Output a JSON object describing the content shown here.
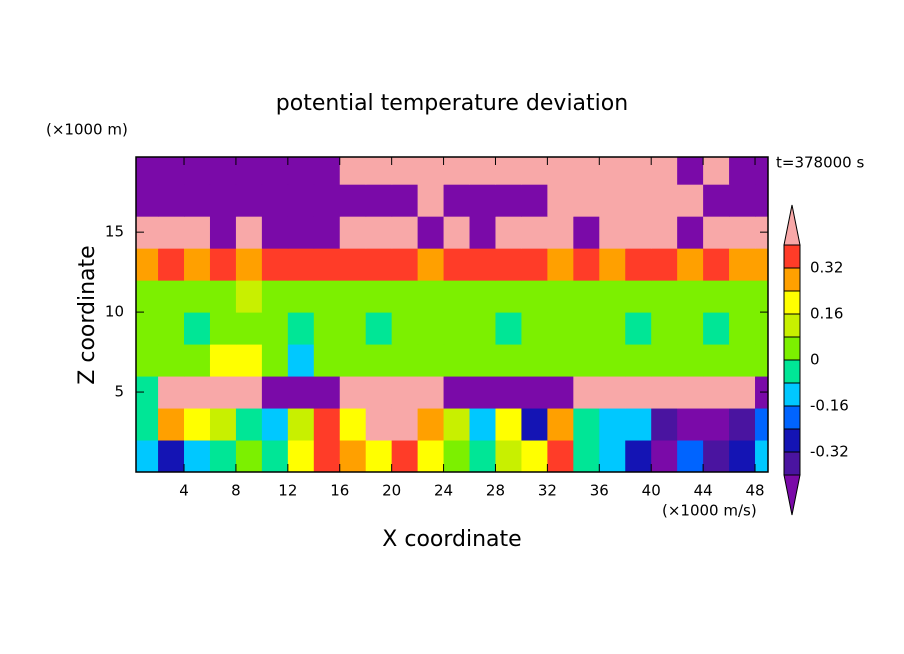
{
  "chart_data": {
    "type": "contour",
    "title": "potential temperature deviation",
    "subtitle": "t=378000 s",
    "x_label": "X coordinate",
    "y_label": "Z coordinate",
    "x_unit": "(×1000 m/s)",
    "y_unit": "(×1000 m)",
    "xlim": [
      0.3,
      49
    ],
    "ylim": [
      0,
      19.7
    ],
    "xticks": [
      4,
      8,
      12,
      16,
      20,
      24,
      28,
      32,
      36,
      40,
      44,
      48
    ],
    "yticks": [
      5,
      10,
      15
    ],
    "x": [
      1,
      3,
      5,
      7,
      9,
      11,
      13,
      15,
      17,
      19,
      21,
      23,
      25,
      27,
      29,
      31,
      33,
      35,
      37,
      39,
      41,
      43,
      45,
      47,
      49
    ],
    "y": [
      1,
      3,
      5,
      7,
      9,
      11,
      13,
      15,
      17,
      19
    ],
    "z": [
      [
        -0.12,
        -0.28,
        -0.12,
        -0.04,
        0.04,
        -0.04,
        0.2,
        0.36,
        0.28,
        0.2,
        0.36,
        0.2,
        0.04,
        -0.04,
        0.12,
        0.2,
        0.36,
        -0.04,
        -0.12,
        -0.28,
        -0.44,
        -0.2,
        -0.36,
        -0.28,
        -0.12
      ],
      [
        -0.04,
        0.28,
        0.2,
        0.12,
        -0.04,
        -0.12,
        0.12,
        0.36,
        0.2,
        0.5,
        0.5,
        0.28,
        0.12,
        -0.12,
        0.2,
        -0.28,
        0.28,
        -0.04,
        -0.12,
        -0.12,
        -0.36,
        -0.44,
        -0.5,
        -0.36,
        -0.2
      ],
      [
        -0.04,
        0.5,
        0.5,
        0.5,
        0.5,
        -0.5,
        -0.5,
        -0.5,
        0.5,
        0.5,
        0.5,
        0.5,
        -0.5,
        -0.5,
        -0.5,
        -0.5,
        -0.5,
        0.5,
        0.5,
        0.5,
        0.5,
        0.5,
        0.5,
        0.5,
        -0.5
      ],
      [
        0.04,
        0.04,
        0.04,
        0.2,
        0.2,
        0.04,
        -0.12,
        0.04,
        0.04,
        0.04,
        0.04,
        0.04,
        0.04,
        0.04,
        0.04,
        0.04,
        0.04,
        0.04,
        0.04,
        0.04,
        0.04,
        0.04,
        0.04,
        0.04,
        0.04
      ],
      [
        0.04,
        0.04,
        -0.04,
        0.04,
        0.04,
        0.04,
        -0.04,
        0.04,
        0.04,
        -0.04,
        0.04,
        0.04,
        0.04,
        0.04,
        -0.04,
        0.04,
        0.04,
        0.04,
        0.04,
        -0.04,
        0.04,
        0.04,
        -0.04,
        0.04,
        0.04
      ],
      [
        0.04,
        0.04,
        0.04,
        0.04,
        0.12,
        0.04,
        0.04,
        0.04,
        0.04,
        0.04,
        0.04,
        0.04,
        0.04,
        0.04,
        0.04,
        0.04,
        0.04,
        0.04,
        0.04,
        0.04,
        0.04,
        0.04,
        0.04,
        0.04,
        0.04
      ],
      [
        0.28,
        0.36,
        0.28,
        0.36,
        0.28,
        0.36,
        0.36,
        0.36,
        0.36,
        0.36,
        0.36,
        0.28,
        0.36,
        0.36,
        0.36,
        0.36,
        0.28,
        0.36,
        0.28,
        0.36,
        0.36,
        0.28,
        0.36,
        0.28,
        0.28
      ],
      [
        0.5,
        0.5,
        0.5,
        -0.5,
        0.5,
        -0.5,
        -0.5,
        -0.5,
        0.5,
        0.5,
        0.5,
        -0.5,
        0.5,
        -0.5,
        0.5,
        0.5,
        0.5,
        -0.5,
        0.5,
        0.5,
        0.5,
        -0.5,
        0.5,
        0.5,
        0.5
      ],
      [
        -0.5,
        -0.5,
        -0.5,
        -0.5,
        -0.5,
        -0.5,
        -0.5,
        -0.5,
        -0.5,
        -0.5,
        -0.5,
        0.5,
        -0.5,
        -0.5,
        -0.5,
        -0.5,
        0.5,
        0.5,
        0.5,
        0.5,
        0.5,
        0.5,
        -0.5,
        -0.5,
        -0.5
      ],
      [
        -0.5,
        -0.5,
        -0.5,
        -0.5,
        -0.5,
        -0.5,
        -0.5,
        -0.5,
        0.5,
        0.5,
        0.5,
        0.5,
        0.5,
        0.5,
        0.5,
        0.5,
        0.5,
        0.5,
        0.5,
        0.5,
        0.5,
        -0.5,
        0.5,
        -0.5,
        -0.5
      ]
    ],
    "levels": [
      -0.4,
      -0.32,
      -0.24,
      -0.16,
      -0.08,
      0,
      0.08,
      0.16,
      0.24,
      0.32,
      0.4
    ],
    "colors": [
      "#7a0aa8",
      "#4a14a0",
      "#1414b4",
      "#0064ff",
      "#00c8ff",
      "#00e696",
      "#7cf000",
      "#c8f000",
      "#ffff00",
      "#ffa000",
      "#ff3c28",
      "#f8a8a8"
    ],
    "colorbar_ticks": [
      -0.32,
      -0.16,
      0,
      0.16,
      0.32
    ]
  }
}
